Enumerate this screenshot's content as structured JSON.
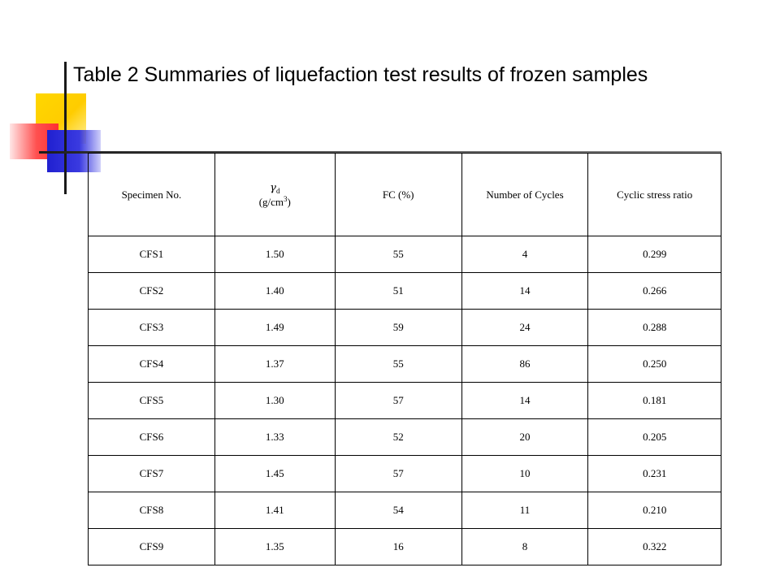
{
  "title": "Table 2 Summaries of liquefaction test results of frozen samples",
  "table": {
    "headers": {
      "specimen": "Specimen No.",
      "density_symbol": "γ",
      "density_subscript": "d",
      "density_unit_prefix": "(g/cm",
      "density_unit_power": "3",
      "density_unit_suffix": ")",
      "fc": "FC (%)",
      "cycles": "Number of Cycles",
      "csr": "Cyclic stress ratio"
    },
    "rows": [
      {
        "specimen": "CFS1",
        "density": "1.50",
        "fc": "55",
        "cycles": "4",
        "csr": "0.299"
      },
      {
        "specimen": "CFS2",
        "density": "1.40",
        "fc": "51",
        "cycles": "14",
        "csr": "0.266"
      },
      {
        "specimen": "CFS3",
        "density": "1.49",
        "fc": "59",
        "cycles": "24",
        "csr": "0.288"
      },
      {
        "specimen": "CFS4",
        "density": "1.37",
        "fc": "55",
        "cycles": "86",
        "csr": "0.250"
      },
      {
        "specimen": "CFS5",
        "density": "1.30",
        "fc": "57",
        "cycles": "14",
        "csr": "0.181"
      },
      {
        "specimen": "CFS6",
        "density": "1.33",
        "fc": "52",
        "cycles": "20",
        "csr": "0.205"
      },
      {
        "specimen": "CFS7",
        "density": "1.45",
        "fc": "57",
        "cycles": "10",
        "csr": "0.231"
      },
      {
        "specimen": "CFS8",
        "density": "1.41",
        "fc": "54",
        "cycles": "11",
        "csr": "0.210"
      },
      {
        "specimen": "CFS9",
        "density": "1.35",
        "fc": "16",
        "cycles": "8",
        "csr": "0.322"
      }
    ]
  }
}
